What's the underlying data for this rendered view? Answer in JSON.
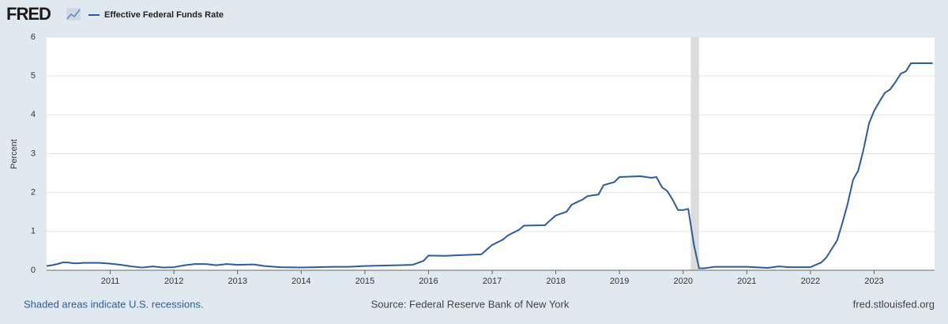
{
  "chart_data": {
    "type": "line",
    "logo": "FRED",
    "ylabel": "Percent",
    "note": "Shaded areas indicate U.S. recessions.",
    "source": "Source: Federal Reserve Bank of New York",
    "credit": "fred.stlouisfed.org",
    "x": [
      2010.0,
      2010.08,
      2010.17,
      2010.25,
      2010.33,
      2010.42,
      2010.5,
      2010.58,
      2010.67,
      2010.75,
      2010.83,
      2010.92,
      2011.0,
      2011.17,
      2011.33,
      2011.5,
      2011.67,
      2011.83,
      2012.0,
      2012.17,
      2012.33,
      2012.5,
      2012.67,
      2012.83,
      2013.0,
      2013.25,
      2013.42,
      2013.67,
      2014.0,
      2014.5,
      2014.75,
      2015.0,
      2015.5,
      2015.75,
      2015.92,
      2016.0,
      2016.25,
      2016.5,
      2016.83,
      2016.92,
      2017.0,
      2017.17,
      2017.25,
      2017.42,
      2017.5,
      2017.83,
      2017.92,
      2018.0,
      2018.17,
      2018.25,
      2018.42,
      2018.5,
      2018.67,
      2018.75,
      2018.92,
      2019.0,
      2019.33,
      2019.5,
      2019.58,
      2019.67,
      2019.75,
      2019.83,
      2019.92,
      2020.0,
      2020.08,
      2020.17,
      2020.25,
      2020.33,
      2020.5,
      2021.0,
      2021.33,
      2021.5,
      2021.67,
      2022.0,
      2022.17,
      2022.25,
      2022.42,
      2022.5,
      2022.58,
      2022.67,
      2022.75,
      2022.83,
      2022.92,
      2023.0,
      2023.08,
      2023.17,
      2023.25,
      2023.33,
      2023.42,
      2023.5,
      2023.58,
      2023.92
    ],
    "series": [
      {
        "name": "Effective Federal Funds Rate",
        "color": "#2a5d9f",
        "values": [
          0.11,
          0.13,
          0.16,
          0.2,
          0.2,
          0.18,
          0.18,
          0.19,
          0.19,
          0.19,
          0.19,
          0.18,
          0.17,
          0.14,
          0.1,
          0.07,
          0.1,
          0.07,
          0.08,
          0.13,
          0.16,
          0.16,
          0.13,
          0.16,
          0.14,
          0.15,
          0.11,
          0.08,
          0.07,
          0.09,
          0.09,
          0.11,
          0.13,
          0.14,
          0.24,
          0.38,
          0.37,
          0.39,
          0.41,
          0.54,
          0.65,
          0.79,
          0.9,
          1.04,
          1.15,
          1.16,
          1.3,
          1.41,
          1.51,
          1.69,
          1.82,
          1.91,
          1.95,
          2.19,
          2.27,
          2.4,
          2.42,
          2.38,
          2.4,
          2.13,
          2.04,
          1.83,
          1.55,
          1.55,
          1.58,
          0.65,
          0.05,
          0.05,
          0.09,
          0.09,
          0.06,
          0.1,
          0.08,
          0.08,
          0.2,
          0.33,
          0.77,
          1.21,
          1.68,
          2.33,
          2.56,
          3.08,
          3.78,
          4.1,
          4.33,
          4.57,
          4.65,
          4.83,
          5.06,
          5.12,
          5.33,
          5.33
        ]
      }
    ],
    "recessions": [
      [
        2020.12,
        2020.25
      ]
    ],
    "xlim": [
      2010.0,
      2023.95
    ],
    "xticks": [
      2011,
      2012,
      2013,
      2014,
      2015,
      2016,
      2017,
      2018,
      2019,
      2020,
      2021,
      2022,
      2023
    ],
    "ylim": [
      0,
      6
    ],
    "yticks": [
      0,
      1,
      2,
      3,
      4,
      5,
      6
    ],
    "grid": true
  }
}
